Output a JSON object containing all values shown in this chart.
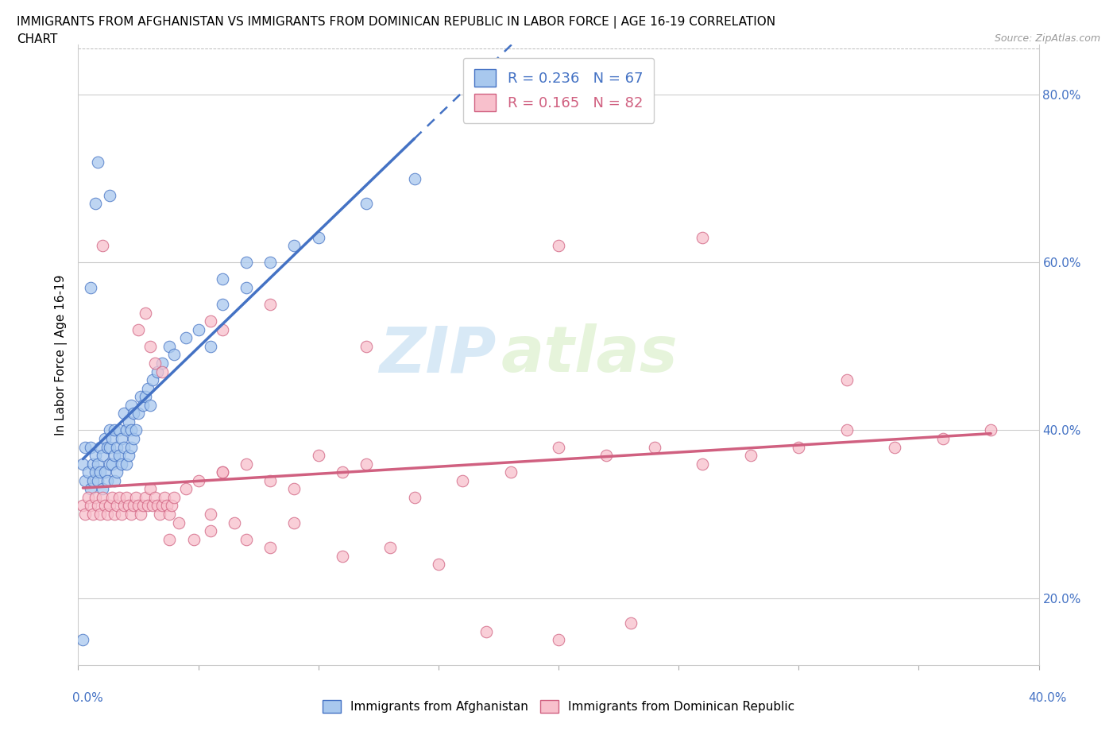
{
  "title_line1": "IMMIGRANTS FROM AFGHANISTAN VS IMMIGRANTS FROM DOMINICAN REPUBLIC IN LABOR FORCE | AGE 16-19 CORRELATION",
  "title_line2": "CHART",
  "source_text": "Source: ZipAtlas.com",
  "ylabel": "In Labor Force | Age 16-19",
  "xlim": [
    0.0,
    0.4
  ],
  "ylim": [
    0.12,
    0.86
  ],
  "ytick_positions": [
    0.2,
    0.4,
    0.6,
    0.8
  ],
  "yticklabels": [
    "20.0%",
    "40.0%",
    "60.0%",
    "80.0%"
  ],
  "watermark_part1": "ZIP",
  "watermark_part2": "atlas",
  "afghanistan_color": "#a8c8ee",
  "afghanistan_edge_color": "#4472c4",
  "dominican_color": "#f8c0cc",
  "dominican_edge_color": "#d06080",
  "afghanistan_R": 0.236,
  "afghanistan_N": 67,
  "dominican_R": 0.165,
  "dominican_N": 82,
  "af_x": [
    0.002,
    0.003,
    0.003,
    0.004,
    0.005,
    0.005,
    0.006,
    0.006,
    0.007,
    0.007,
    0.008,
    0.008,
    0.009,
    0.009,
    0.01,
    0.01,
    0.011,
    0.011,
    0.012,
    0.012,
    0.013,
    0.013,
    0.013,
    0.014,
    0.014,
    0.015,
    0.015,
    0.015,
    0.016,
    0.016,
    0.017,
    0.017,
    0.018,
    0.018,
    0.019,
    0.019,
    0.02,
    0.02,
    0.021,
    0.021,
    0.022,
    0.022,
    0.022,
    0.023,
    0.023,
    0.024,
    0.025,
    0.026,
    0.027,
    0.028,
    0.029,
    0.03,
    0.031,
    0.033,
    0.035,
    0.038,
    0.04,
    0.045,
    0.05,
    0.055,
    0.06,
    0.07,
    0.08,
    0.09,
    0.1,
    0.12,
    0.14
  ],
  "af_y": [
    0.36,
    0.34,
    0.38,
    0.35,
    0.33,
    0.38,
    0.34,
    0.36,
    0.35,
    0.37,
    0.34,
    0.36,
    0.35,
    0.38,
    0.33,
    0.37,
    0.35,
    0.39,
    0.34,
    0.38,
    0.36,
    0.38,
    0.4,
    0.36,
    0.39,
    0.34,
    0.37,
    0.4,
    0.35,
    0.38,
    0.37,
    0.4,
    0.36,
    0.39,
    0.38,
    0.42,
    0.36,
    0.4,
    0.37,
    0.41,
    0.38,
    0.4,
    0.43,
    0.39,
    0.42,
    0.4,
    0.42,
    0.44,
    0.43,
    0.44,
    0.45,
    0.43,
    0.46,
    0.47,
    0.48,
    0.5,
    0.49,
    0.51,
    0.52,
    0.5,
    0.55,
    0.57,
    0.6,
    0.62,
    0.63,
    0.67,
    0.7
  ],
  "af_outliers_x": [
    0.002,
    0.005,
    0.007,
    0.008,
    0.013,
    0.06,
    0.07
  ],
  "af_outliers_y": [
    0.15,
    0.57,
    0.67,
    0.72,
    0.68,
    0.58,
    0.6
  ],
  "dom_x": [
    0.002,
    0.003,
    0.004,
    0.005,
    0.006,
    0.007,
    0.008,
    0.009,
    0.01,
    0.011,
    0.012,
    0.013,
    0.014,
    0.015,
    0.016,
    0.017,
    0.018,
    0.019,
    0.02,
    0.021,
    0.022,
    0.023,
    0.024,
    0.025,
    0.026,
    0.027,
    0.028,
    0.029,
    0.03,
    0.031,
    0.032,
    0.033,
    0.034,
    0.035,
    0.036,
    0.037,
    0.038,
    0.039,
    0.04,
    0.045,
    0.05,
    0.055,
    0.06,
    0.065,
    0.07,
    0.08,
    0.09,
    0.1,
    0.11,
    0.12,
    0.14,
    0.16,
    0.18,
    0.2,
    0.22,
    0.24,
    0.26,
    0.28,
    0.3,
    0.32,
    0.34,
    0.36,
    0.38,
    0.025,
    0.028,
    0.03,
    0.032,
    0.035,
    0.038,
    0.042,
    0.048,
    0.055,
    0.06,
    0.07,
    0.08,
    0.09,
    0.11,
    0.13,
    0.15,
    0.17,
    0.2,
    0.23
  ],
  "dom_y": [
    0.31,
    0.3,
    0.32,
    0.31,
    0.3,
    0.32,
    0.31,
    0.3,
    0.32,
    0.31,
    0.3,
    0.31,
    0.32,
    0.3,
    0.31,
    0.32,
    0.3,
    0.31,
    0.32,
    0.31,
    0.3,
    0.31,
    0.32,
    0.31,
    0.3,
    0.31,
    0.32,
    0.31,
    0.33,
    0.31,
    0.32,
    0.31,
    0.3,
    0.31,
    0.32,
    0.31,
    0.3,
    0.31,
    0.32,
    0.33,
    0.34,
    0.3,
    0.35,
    0.29,
    0.36,
    0.34,
    0.33,
    0.37,
    0.35,
    0.36,
    0.32,
    0.34,
    0.35,
    0.38,
    0.37,
    0.38,
    0.36,
    0.37,
    0.38,
    0.4,
    0.38,
    0.39,
    0.4,
    0.52,
    0.54,
    0.5,
    0.48,
    0.47,
    0.27,
    0.29,
    0.27,
    0.28,
    0.35,
    0.27,
    0.26,
    0.29,
    0.25,
    0.26,
    0.24,
    0.16,
    0.15,
    0.17
  ],
  "dom_outliers_x": [
    0.01,
    0.055,
    0.06,
    0.08,
    0.12,
    0.2,
    0.26,
    0.32
  ],
  "dom_outliers_y": [
    0.62,
    0.53,
    0.52,
    0.55,
    0.5,
    0.62,
    0.63,
    0.46
  ]
}
